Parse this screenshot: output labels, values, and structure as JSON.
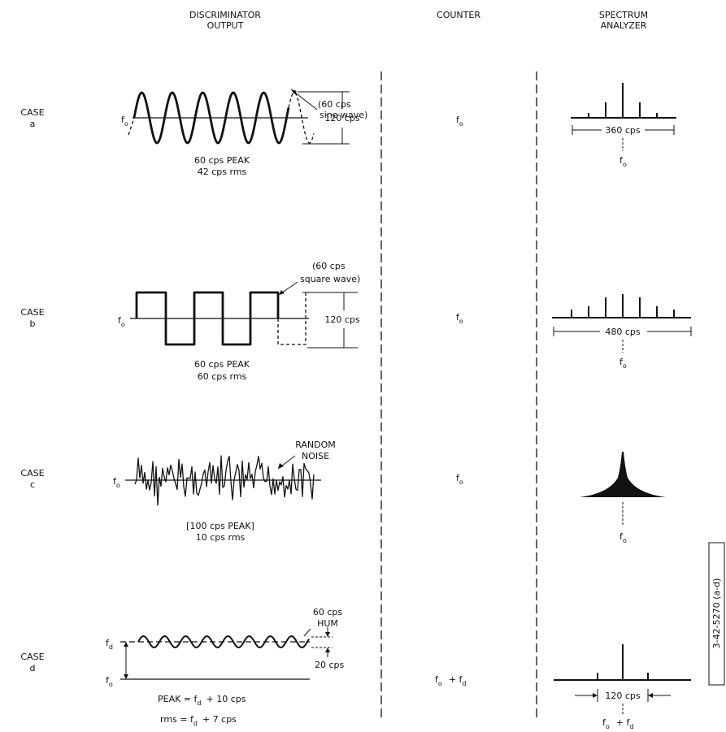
{
  "headers": {
    "discriminator": [
      "DISCRIMINATOR",
      "OUTPUT"
    ],
    "counter": "COUNTER",
    "spectrum": [
      "SPECTRUM",
      "ANALYZER"
    ]
  },
  "cases": {
    "a": {
      "label": [
        "CASE",
        "a"
      ],
      "signal_note": [
        "(60 cps",
        "sine wave)"
      ],
      "amplitude": "120 cps",
      "peak": "60 cps PEAK",
      "rms": "42 cps rms",
      "counter": "f",
      "counter_sub": "o",
      "span": "360 cps",
      "center": "f",
      "center_sub": "o",
      "baseline": "f",
      "baseline_sub": "o"
    },
    "b": {
      "label": [
        "CASE",
        "b"
      ],
      "signal_note": [
        "(60 cps",
        "square wave)"
      ],
      "amplitude": "120 cps",
      "peak": "60 cps PEAK",
      "rms": "60 cps rms",
      "counter": "f",
      "counter_sub": "o",
      "span": "480 cps",
      "center": "f",
      "center_sub": "o",
      "baseline": "f",
      "baseline_sub": "o"
    },
    "c": {
      "label": [
        "CASE",
        "c"
      ],
      "signal_note": [
        "RANDOM",
        "NOISE"
      ],
      "peak": "[100 cps PEAK]",
      "rms": "10 cps rms",
      "counter": "f",
      "counter_sub": "o",
      "center": "f",
      "center_sub": "o",
      "baseline": "f",
      "baseline_sub": "o"
    },
    "d": {
      "label": [
        "CASE",
        "d"
      ],
      "signal_note": [
        "60 cps",
        "HUM"
      ],
      "amplitude": "20 cps",
      "peak": "PEAK = f",
      "peak_sub": "d",
      "peak_tail": "+ 10 cps",
      "rms": "rms = f",
      "rms_sub": "d",
      "rms_tail": "+ 7 cps",
      "counter": "f",
      "counter_sub": "o",
      "counter_plus": "+ f",
      "counter_sub2": "d",
      "span": "120 cps",
      "center": "f",
      "center_sub": "o",
      "center_plus": "+ f",
      "center_sub2": "d",
      "baseline": "f",
      "baseline_sub": "o",
      "offset_label": "f",
      "offset_sub": "d"
    }
  },
  "figure_id": "3-42-5270 (a-d)"
}
